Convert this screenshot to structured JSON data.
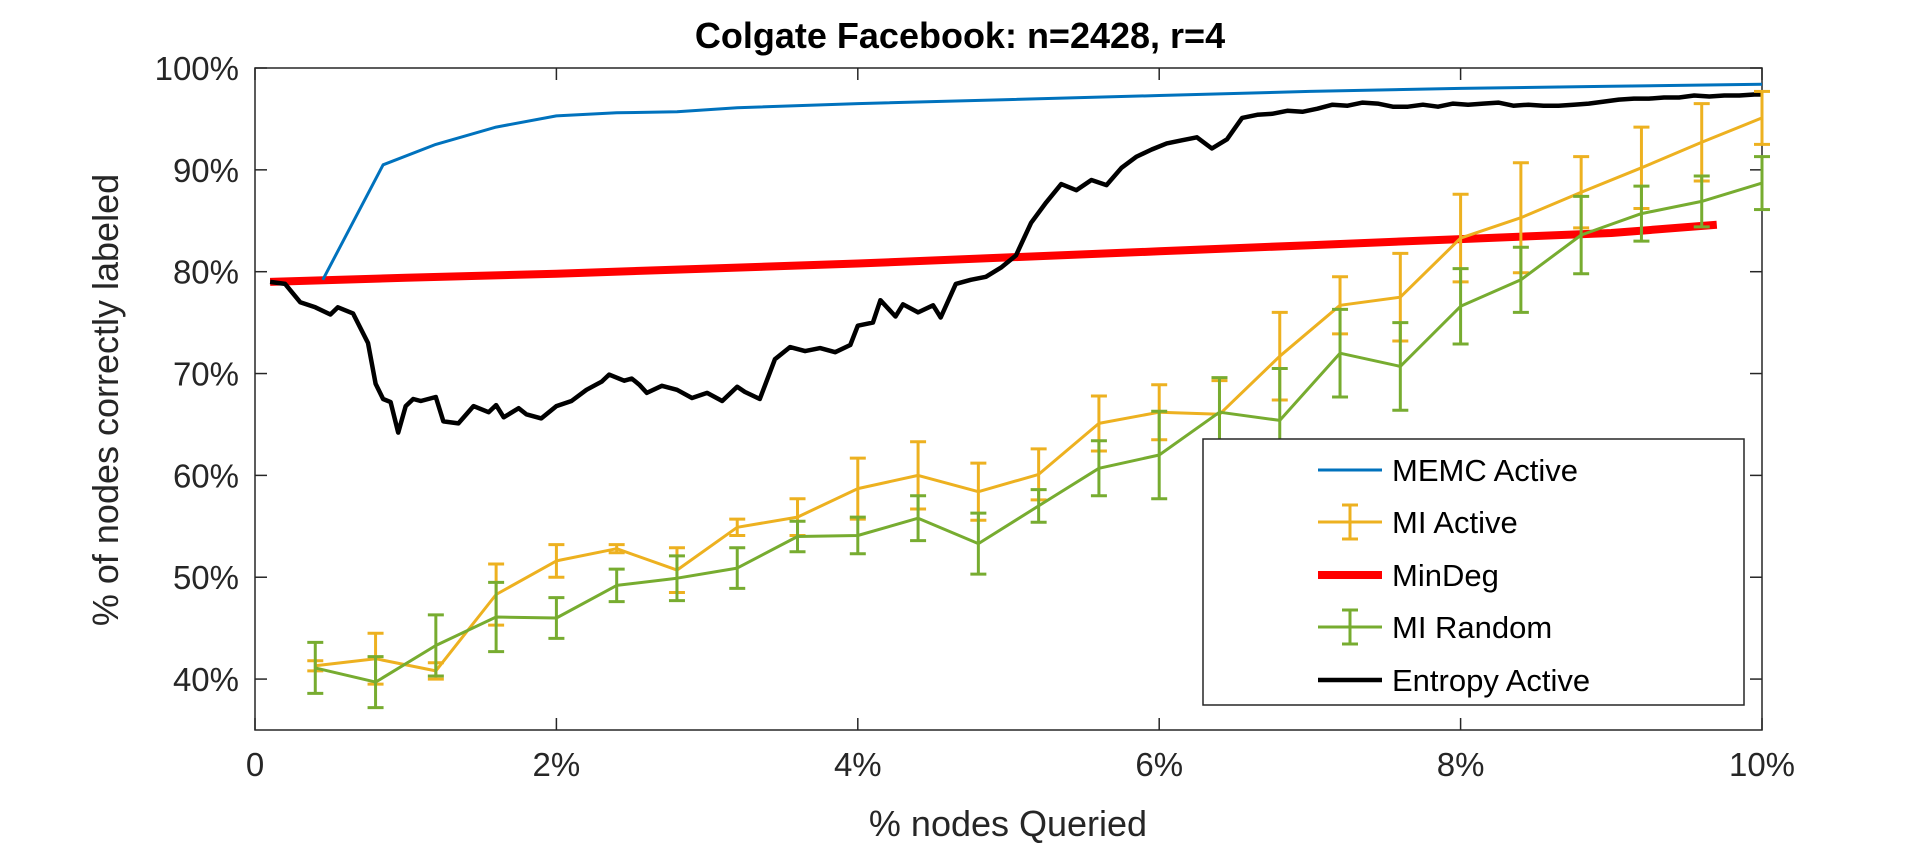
{
  "chart_data": {
    "type": "line",
    "title": "Colgate Facebook: n=2428, r=4",
    "xlabel": "% nodes Queried",
    "ylabel": "% of nodes correctly labeled",
    "xlim": [
      0,
      10
    ],
    "ylim": [
      35,
      100
    ],
    "x_ticks": [
      0,
      2,
      4,
      6,
      8,
      10
    ],
    "x_tick_labels": [
      "0",
      "2%",
      "4%",
      "6%",
      "8%",
      "10%"
    ],
    "y_ticks": [
      40,
      50,
      60,
      70,
      80,
      90,
      100
    ],
    "y_tick_labels": [
      "40%",
      "50%",
      "60%",
      "70%",
      "80%",
      "90%",
      "100%"
    ],
    "grid": false,
    "legend_position": "bottom-right",
    "series": [
      {
        "name": "MEMC Active",
        "color": "#0072BD",
        "style": "line",
        "x": [
          0.45,
          0.85,
          1.2,
          1.6,
          2.0,
          2.4,
          2.8,
          3.2,
          4.0,
          5.0,
          6.0,
          7.0,
          8.0,
          9.0,
          10.0
        ],
        "y": [
          79.2,
          90.5,
          92.5,
          94.2,
          95.3,
          95.6,
          95.7,
          96.1,
          96.5,
          96.9,
          97.3,
          97.7,
          98.0,
          98.2,
          98.4
        ]
      },
      {
        "name": "MI Active",
        "color": "#EDB120",
        "style": "errorbar",
        "x": [
          0.4,
          0.8,
          1.2,
          1.6,
          2.0,
          2.4,
          2.8,
          3.2,
          3.6,
          4.0,
          4.4,
          4.8,
          5.2,
          5.6,
          6.0,
          6.4,
          6.8,
          7.2,
          7.6,
          8.0,
          8.4,
          8.8,
          9.2,
          9.6,
          10.0
        ],
        "y": [
          41.3,
          42.0,
          40.8,
          48.3,
          51.6,
          52.8,
          50.7,
          54.9,
          55.9,
          58.7,
          60.0,
          58.4,
          60.1,
          65.1,
          66.2,
          66.0,
          71.7,
          76.7,
          77.5,
          83.3,
          85.3,
          87.8,
          90.2,
          92.7,
          95.1
        ],
        "err": [
          0.5,
          2.5,
          0.8,
          3.0,
          1.6,
          0.4,
          2.2,
          0.8,
          1.8,
          3.0,
          3.3,
          2.8,
          2.5,
          2.7,
          2.7,
          3.3,
          4.3,
          2.8,
          4.3,
          4.3,
          5.4,
          3.5,
          4.0,
          3.8,
          2.6
        ]
      },
      {
        "name": "MinDeg",
        "color": "#FF0000",
        "style": "thick-line",
        "x": [
          0.1,
          1.0,
          2.0,
          3.0,
          4.0,
          5.0,
          6.0,
          7.0,
          8.0,
          9.0,
          9.7
        ],
        "y": [
          79.0,
          79.4,
          79.8,
          80.3,
          80.8,
          81.4,
          82.0,
          82.6,
          83.2,
          83.8,
          84.6
        ]
      },
      {
        "name": "MI Random",
        "color": "#77AC30",
        "style": "errorbar",
        "x": [
          0.4,
          0.8,
          1.2,
          1.6,
          2.0,
          2.4,
          2.8,
          3.2,
          3.6,
          4.0,
          4.4,
          4.8,
          5.2,
          5.6,
          6.0,
          6.4,
          6.8,
          7.2,
          7.6,
          8.0,
          8.4,
          8.8,
          9.2,
          9.6,
          10.0
        ],
        "y": [
          41.1,
          39.7,
          43.3,
          46.1,
          46.0,
          49.2,
          49.9,
          50.9,
          54.0,
          54.1,
          55.8,
          53.3,
          57.0,
          60.7,
          62.0,
          66.2,
          65.4,
          72.0,
          70.7,
          76.6,
          79.2,
          83.6,
          85.7,
          86.9,
          88.7
        ],
        "err": [
          2.5,
          2.5,
          3.0,
          3.4,
          2.0,
          1.6,
          2.2,
          2.0,
          1.5,
          1.8,
          2.2,
          3.0,
          1.6,
          2.7,
          4.3,
          3.4,
          5.1,
          4.3,
          4.3,
          3.7,
          3.2,
          3.8,
          2.7,
          2.5,
          2.6
        ]
      },
      {
        "name": "Entropy Active",
        "color": "#000000",
        "style": "thick-line",
        "x": [
          0.1,
          0.2,
          0.3,
          0.4,
          0.5,
          0.55,
          0.65,
          0.75,
          0.8,
          0.85,
          0.9,
          0.95,
          1.0,
          1.05,
          1.1,
          1.2,
          1.25,
          1.35,
          1.45,
          1.55,
          1.6,
          1.65,
          1.75,
          1.8,
          1.9,
          2.0,
          2.1,
          2.2,
          2.3,
          2.35,
          2.45,
          2.5,
          2.55,
          2.6,
          2.7,
          2.8,
          2.9,
          3.0,
          3.1,
          3.15,
          3.2,
          3.25,
          3.35,
          3.45,
          3.55,
          3.65,
          3.75,
          3.85,
          3.95,
          4.0,
          4.1,
          4.15,
          4.25,
          4.3,
          4.4,
          4.5,
          4.55,
          4.65,
          4.75,
          4.85,
          4.95,
          5.05,
          5.15,
          5.25,
          5.35,
          5.45,
          5.55,
          5.65,
          5.75,
          5.85,
          5.95,
          6.05,
          6.15,
          6.25,
          6.35,
          6.45,
          6.55,
          6.65,
          6.75,
          6.85,
          6.95,
          7.05,
          7.15,
          7.25,
          7.35,
          7.45,
          7.55,
          7.65,
          7.75,
          7.85,
          7.95,
          8.05,
          8.15,
          8.25,
          8.35,
          8.45,
          8.55,
          8.65,
          8.75,
          8.85,
          8.95,
          9.05,
          9.15,
          9.25,
          9.35,
          9.45,
          9.55,
          9.65,
          9.75,
          9.85,
          9.95,
          10.0
        ],
        "y": [
          79.0,
          78.8,
          77.0,
          76.5,
          75.8,
          76.5,
          75.9,
          73.0,
          69.0,
          67.5,
          67.2,
          64.2,
          66.8,
          67.5,
          67.3,
          67.7,
          65.3,
          65.1,
          66.8,
          66.2,
          66.9,
          65.7,
          66.6,
          66.0,
          65.6,
          66.8,
          67.3,
          68.4,
          69.2,
          69.9,
          69.3,
          69.5,
          68.9,
          68.1,
          68.8,
          68.4,
          67.6,
          68.1,
          67.3,
          68.0,
          68.7,
          68.2,
          67.5,
          71.4,
          72.6,
          72.2,
          72.5,
          72.1,
          72.8,
          74.7,
          75.0,
          77.2,
          75.6,
          76.8,
          76.0,
          76.7,
          75.5,
          78.8,
          79.2,
          79.5,
          80.4,
          81.6,
          84.8,
          86.8,
          88.6,
          88.0,
          89.0,
          88.5,
          90.2,
          91.3,
          92.0,
          92.6,
          92.9,
          93.2,
          92.1,
          93.0,
          95.1,
          95.4,
          95.5,
          95.8,
          95.7,
          96.0,
          96.4,
          96.3,
          96.6,
          96.5,
          96.2,
          96.2,
          96.4,
          96.2,
          96.5,
          96.4,
          96.5,
          96.6,
          96.3,
          96.4,
          96.3,
          96.3,
          96.4,
          96.5,
          96.7,
          96.9,
          97.0,
          97.0,
          97.1,
          97.1,
          97.3,
          97.2,
          97.3,
          97.3,
          97.4,
          97.4
        ]
      }
    ]
  }
}
